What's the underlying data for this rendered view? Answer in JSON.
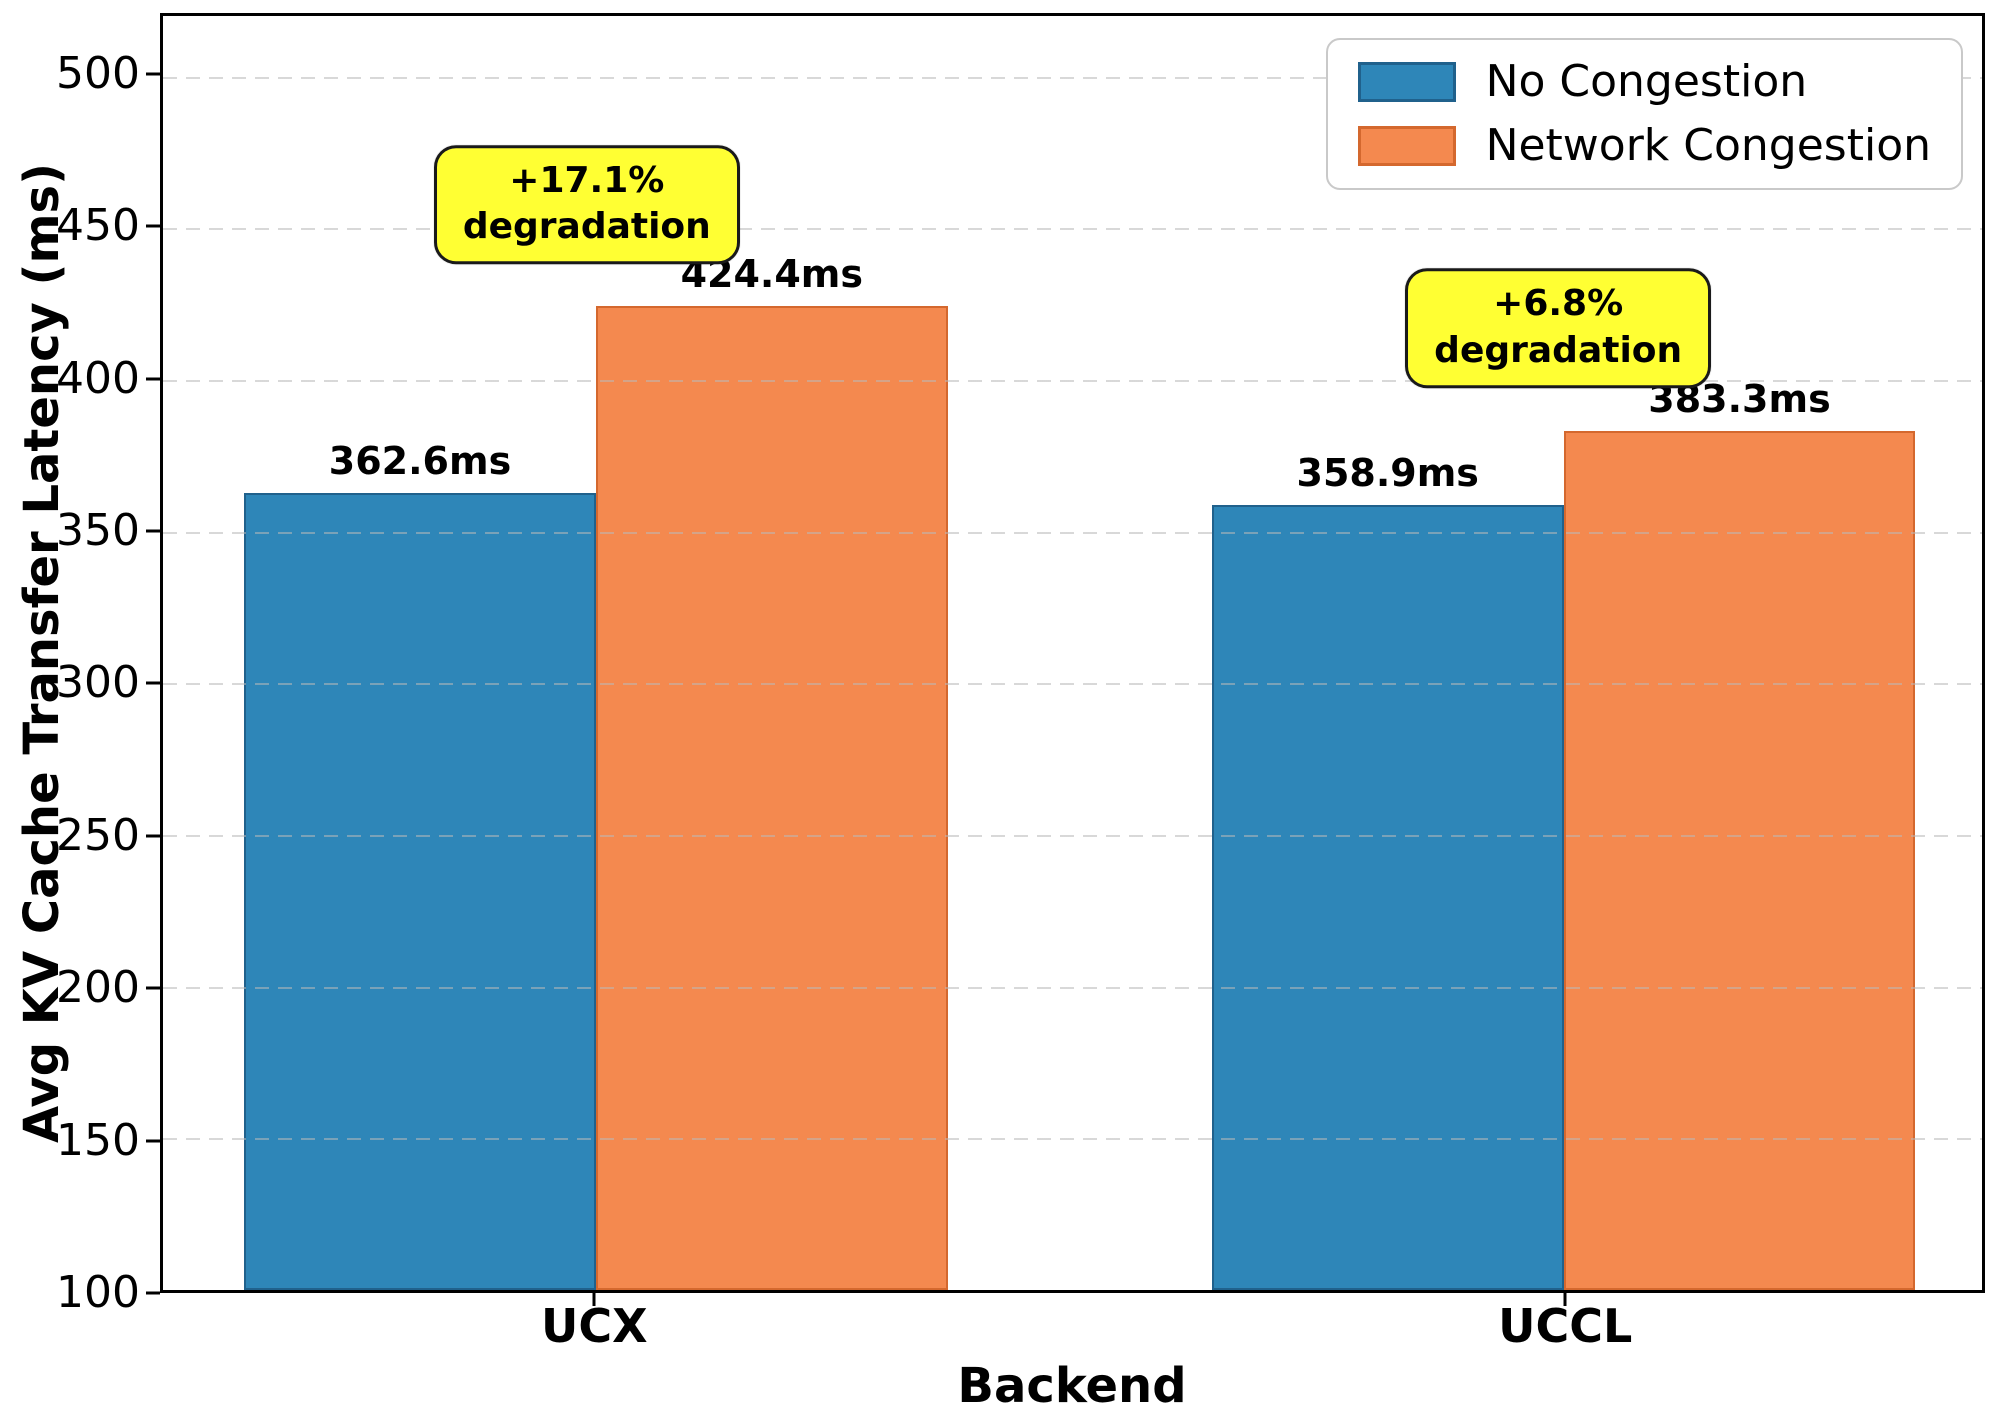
{
  "chart_data": {
    "type": "bar",
    "title": "",
    "xlabel": "Backend",
    "ylabel": "Avg KV Cache Transfer Latency (ms)",
    "categories": [
      "UCX",
      "UCCL"
    ],
    "series": [
      {
        "name": "No Congestion",
        "color": "#2e86b8",
        "edge_color": "#20618c",
        "values": [
          362.6,
          358.9
        ]
      },
      {
        "name": "Network Congestion",
        "color": "#f4894f",
        "edge_color": "#d4682e",
        "values": [
          424.4,
          383.3
        ]
      }
    ],
    "value_label_suffix": "ms",
    "yticks": [
      100,
      150,
      200,
      250,
      300,
      350,
      400,
      450,
      500
    ],
    "ylim": [
      100,
      520
    ],
    "grid": "dashed-horizontal",
    "legend_position": "top-right",
    "annotations": [
      {
        "line1": "+17.1%",
        "line2": "degradation",
        "cx": 0.233,
        "cy": 0.148,
        "bg": "#ffff33"
      },
      {
        "line1": "+6.8%",
        "line2": "degradation",
        "cx": 0.767,
        "cy": 0.245,
        "bg": "#ffff33"
      }
    ],
    "layout": {
      "group_centers": [
        0.238,
        0.77
      ],
      "bar_width": 0.1934
    }
  }
}
